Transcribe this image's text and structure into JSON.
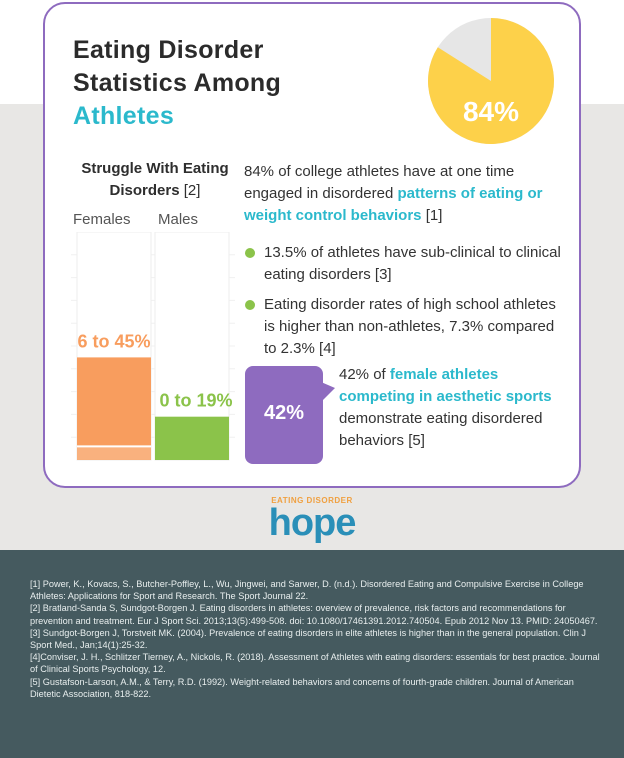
{
  "title": {
    "line1": "Eating Disorder",
    "line2": "Statistics Among",
    "line3": "Athletes"
  },
  "pie": {
    "label": "84%",
    "value": 84,
    "fill_color": "#fdd14a",
    "rest_color": "#e6e6e6"
  },
  "chart_data": {
    "type": "bar",
    "title": "Struggle With Eating Disorders",
    "title_ref": "[2]",
    "categories": [
      "Females",
      "Males"
    ],
    "series": [
      {
        "low": 6,
        "high": 45,
        "label": "6 to 45%",
        "color": "#f89d5e"
      },
      {
        "low": 0,
        "high": 19,
        "label": "0 to 19%",
        "color": "#8bc34a"
      }
    ],
    "ylim": [
      0,
      100
    ]
  },
  "colors": {
    "accent": "#2bb9cc",
    "purple": "#8e6bbf",
    "green": "#8bc34a",
    "orange": "#f89d5e"
  },
  "intro": {
    "prefix": "84% of college athletes have at one time engaged in disordered ",
    "highlight": "patterns of eating or weight control behaviors",
    "suffix": " [1]"
  },
  "bullets": [
    "13.5% of athletes have sub-clinical to clinical eating disorders [3]",
    "Eating disorder rates of high school athletes is higher than non-athletes, 7.3% compared to 2.3% [4]"
  ],
  "female_stat": {
    "badge": "42%",
    "prefix": "42% of ",
    "highlight": "female athletes competing in aesthetic sports",
    "suffix": " demonstrate eating disordered behaviors [5]"
  },
  "logo": {
    "small": "EATING DISORDER",
    "big": "hope"
  },
  "references": [
    "[1] Power, K., Kovacs, S., Butcher-Poffley, L., Wu, Jingwei, and Sarwer, D. (n.d.). Disordered Eating and Compulsive Exercise in College Athletes: Applications for Sport and Research. The Sport Journal 22.",
    "[2] Bratland-Sanda S, Sundgot-Borgen J. Eating disorders in athletes: overview of prevalence, risk factors and recommendations for prevention and treatment. Eur J Sport Sci. 2013;13(5):499-508. doi: 10.1080/17461391.2012.740504. Epub 2012 Nov 13. PMID: 24050467.",
    "[3] Sundgot-Borgen J, Torstveit MK. (2004). Prevalence of eating disorders in elite athletes is higher than in the general population. Clin J Sport Med., Jan;14(1):25-32.",
    "[4]Conviser, J. H., Schlitzer Tierney, A., Nickols, R. (2018). Assessment of Athletes with eating disorders: essentials for best practice. Journal of Clinical Sports Psychology, 12.",
    "[5] Gustafson-Larson, A.M., & Terry, R.D. (1992). Weight-related behaviors and concerns of fourth-grade children. Journal of American Dietetic Association, 818-822."
  ]
}
